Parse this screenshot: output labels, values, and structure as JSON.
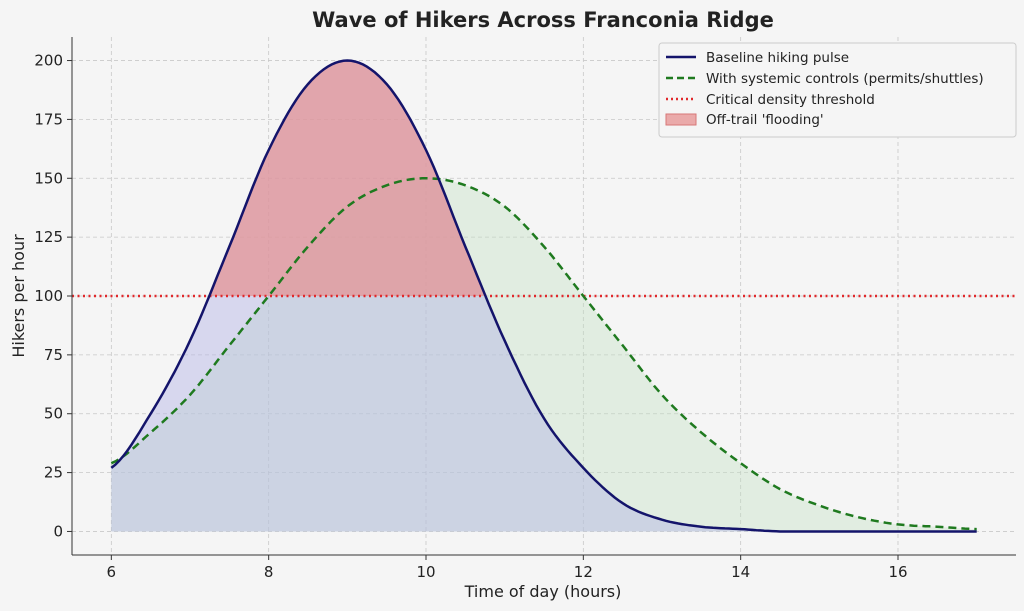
{
  "chart_data": {
    "type": "line",
    "title": "Wave of Hikers Across Franconia Ridge",
    "xlabel": "Time of day (hours)",
    "ylabel": "Hikers per hour",
    "xlim": [
      5.5,
      17.5
    ],
    "ylim": [
      -10,
      210
    ],
    "xticks": [
      6,
      8,
      10,
      12,
      14,
      16
    ],
    "yticks": [
      0,
      25,
      50,
      75,
      100,
      125,
      150,
      175,
      200
    ],
    "grid": true,
    "legend_position": "top-right",
    "series": [
      {
        "name": "Baseline hiking pulse",
        "style": "solid",
        "color": "#14146b",
        "x": [
          6,
          6.5,
          7,
          7.5,
          8,
          8.5,
          9,
          9.5,
          10,
          10.5,
          11,
          11.5,
          12,
          12.5,
          13,
          13.5,
          14,
          14.5,
          15,
          15.5,
          16,
          16.5,
          17
        ],
        "values": [
          27,
          50,
          81,
          121,
          162,
          190,
          200,
          190,
          162,
          121,
          81,
          48,
          27,
          12,
          5,
          2,
          1,
          0,
          0,
          0,
          0,
          0,
          0
        ]
      },
      {
        "name": "With systemic controls (permits/shuttles)",
        "style": "dashed",
        "color": "#1f7a1f",
        "x": [
          6,
          6.5,
          7,
          7.5,
          8,
          8.5,
          9,
          9.5,
          10,
          10.5,
          11,
          11.5,
          12,
          12.5,
          13,
          13.5,
          14,
          14.5,
          15,
          15.5,
          16,
          16.5,
          17
        ],
        "values": [
          29,
          42,
          58,
          79,
          100,
          121,
          138,
          147,
          150,
          147,
          138,
          121,
          100,
          79,
          58,
          42,
          29,
          18,
          11,
          6,
          3,
          2,
          1
        ]
      },
      {
        "name": "Critical density threshold",
        "style": "dotted",
        "color": "#e0282b",
        "y": 100
      },
      {
        "name": "Off-trail 'flooding'",
        "style": "fill",
        "color": "#e69090"
      }
    ]
  }
}
